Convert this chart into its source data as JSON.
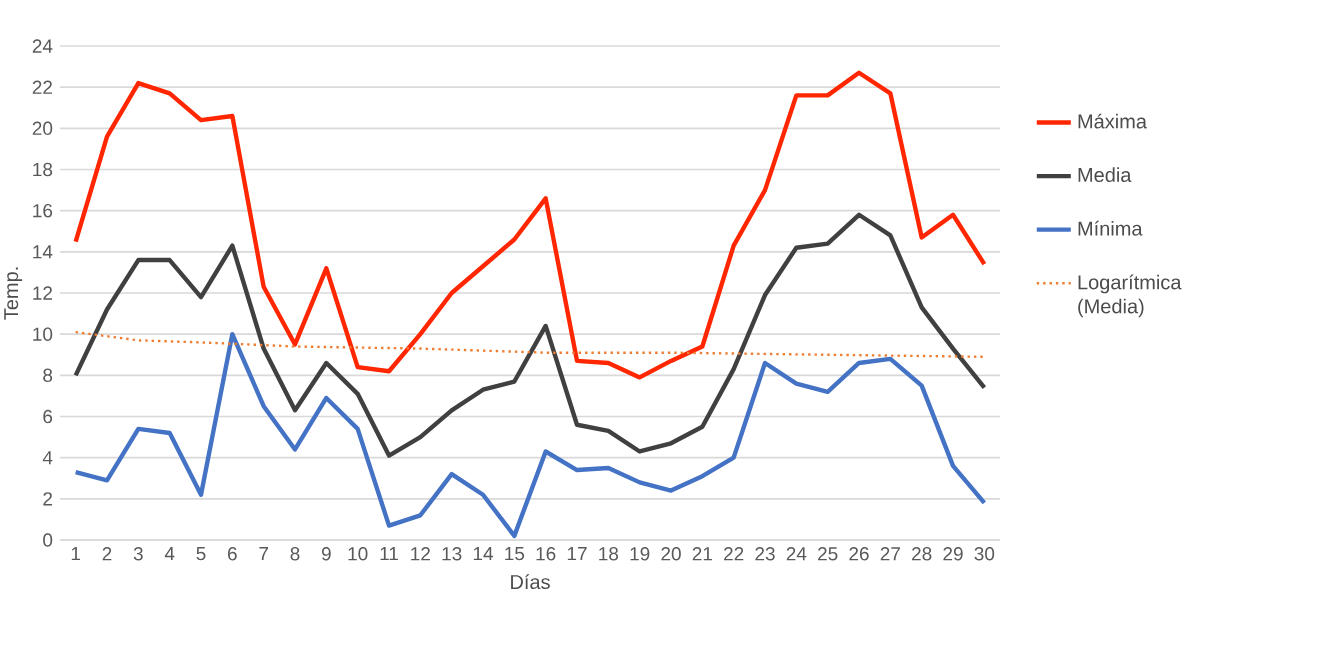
{
  "chart_data": {
    "type": "line",
    "xlabel": "Días",
    "ylabel": "Temp.",
    "x": [
      1,
      2,
      3,
      4,
      5,
      6,
      7,
      8,
      9,
      10,
      11,
      12,
      13,
      14,
      15,
      16,
      17,
      18,
      19,
      20,
      21,
      22,
      23,
      24,
      25,
      26,
      27,
      28,
      29,
      30
    ],
    "xlim": [
      0.5,
      30.5
    ],
    "xticks": [
      1,
      2,
      3,
      4,
      5,
      6,
      7,
      8,
      9,
      10,
      11,
      12,
      13,
      14,
      15,
      16,
      17,
      18,
      19,
      20,
      21,
      22,
      23,
      24,
      25,
      26,
      27,
      28,
      29,
      30
    ],
    "ylim": [
      0,
      24
    ],
    "yticks": [
      0,
      2,
      4,
      6,
      8,
      10,
      12,
      14,
      16,
      18,
      20,
      22,
      24
    ],
    "grid": "y",
    "legend": "right",
    "marker": "none",
    "line_style": "solid",
    "series": [
      {
        "name": "Máxima",
        "color": "#ff2600",
        "values": [
          14.5,
          19.6,
          22.2,
          21.7,
          20.4,
          20.6,
          12.3,
          9.5,
          13.2,
          8.4,
          8.2,
          10,
          12,
          13.3,
          14.6,
          16.6,
          8.7,
          8.6,
          7.9,
          8.7,
          9.4,
          14.3,
          17,
          21.6,
          21.6,
          22.7,
          21.7,
          14.7,
          15.8,
          13.4
        ]
      },
      {
        "name": "Media",
        "color": "#404040",
        "values": [
          8,
          11.2,
          13.6,
          13.6,
          11.8,
          14.3,
          9.3,
          6.3,
          8.6,
          7.1,
          4.1,
          5,
          6.3,
          7.3,
          7.7,
          10.4,
          5.6,
          5.3,
          4.3,
          4.7,
          5.5,
          8.3,
          11.9,
          14.2,
          14.4,
          15.8,
          14.8,
          11.3,
          9.3,
          7.4
        ]
      },
      {
        "name": "Mínima",
        "color": "#4472c4",
        "values": [
          3.3,
          2.9,
          5.4,
          5.2,
          2.2,
          10,
          6.5,
          4.4,
          6.9,
          5.4,
          0.7,
          1.2,
          3.2,
          2.2,
          0.2,
          4.3,
          3.4,
          3.5,
          2.8,
          2.4,
          3.1,
          4,
          8.6,
          7.6,
          7.2,
          8.6,
          8.8,
          7.5,
          3.6,
          1.8
        ]
      },
      {
        "name": "Logarítmica (Media)",
        "color": "#ed7d31",
        "type": "line",
        "line_style": "dotted",
        "x": [
          1,
          2,
          3,
          5,
          8,
          12,
          16,
          20,
          25,
          30
        ],
        "values": [
          10.1,
          9.9,
          9.7,
          9.6,
          9.4,
          9.3,
          9.1,
          9.1,
          9,
          8.9
        ]
      }
    ]
  }
}
